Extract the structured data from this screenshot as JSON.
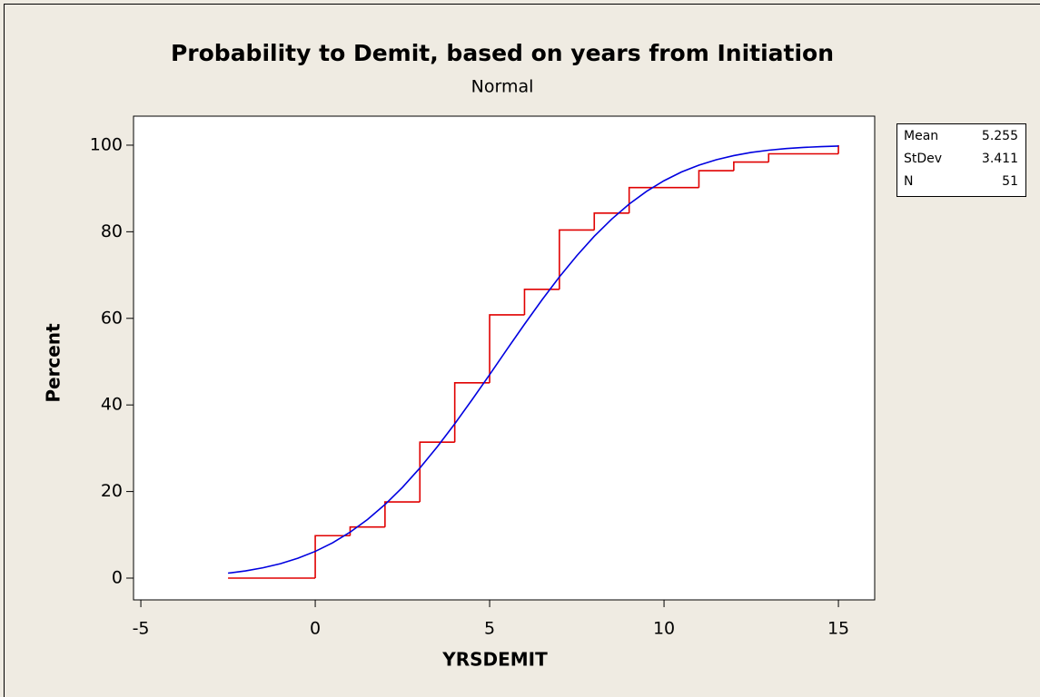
{
  "chart_data": {
    "type": "ecdf",
    "title": "Probability to Demit, based on years from Initiation",
    "subtitle": "Normal",
    "x_label": "YRSDEMIT",
    "y_label": "Percent",
    "xlim": [
      -5.21,
      16.04
    ],
    "ylim": [
      -5.03,
      106.7
    ],
    "xticks": [
      -5,
      0,
      5,
      10,
      15
    ],
    "yticks": [
      0,
      20,
      40,
      60,
      80,
      100
    ],
    "series": [
      {
        "color": "#e00000",
        "x": [
          -2.5,
          0,
          1,
          2,
          3,
          4,
          5,
          6,
          7,
          8,
          9,
          11,
          12,
          13,
          15
        ],
        "values": [
          0,
          9.8,
          11.8,
          17.6,
          31.4,
          45.1,
          60.8,
          66.7,
          80.4,
          84.3,
          90.2,
          94.1,
          96.1,
          98.0,
          100
        ]
      },
      {
        "color": "#0000e0",
        "x": [
          -2.5,
          -2,
          -1.5,
          -1,
          -0.5,
          0,
          0.5,
          1,
          1.5,
          2,
          2.5,
          3,
          3.5,
          4,
          4.5,
          5,
          5.5,
          6,
          6.5,
          7,
          7.5,
          8,
          8.5,
          9,
          9.5,
          10,
          10.5,
          11,
          11.5,
          12,
          12.5,
          13,
          13.5,
          14,
          14.5,
          15
        ],
        "values": [
          1.15,
          1.67,
          2.38,
          3.33,
          4.58,
          6.17,
          8.17,
          10.62,
          13.55,
          17.0,
          20.96,
          25.43,
          30.34,
          35.64,
          41.25,
          47.0,
          52.87,
          58.64,
          64.25,
          69.56,
          74.47,
          78.96,
          82.92,
          86.39,
          89.34,
          91.79,
          93.8,
          95.39,
          96.64,
          97.6,
          98.32,
          98.84,
          99.22,
          99.48,
          99.66,
          99.79
        ]
      }
    ],
    "stats": [
      {
        "label": "Mean",
        "value": 5.255
      },
      {
        "label": "StDev",
        "value": 3.411
      },
      {
        "label": "N",
        "value": 51
      }
    ]
  }
}
